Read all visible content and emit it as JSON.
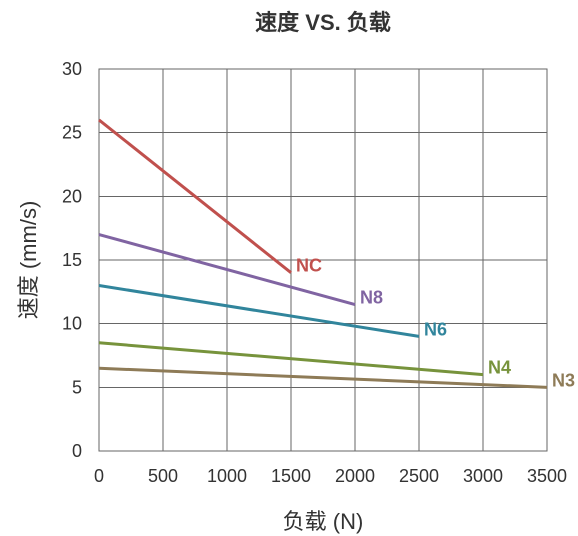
{
  "chart_data": {
    "type": "line",
    "title": "速度 VS. 负载",
    "xlabel": "负载 (N)",
    "ylabel": "速度 (mm/s)",
    "xlim": [
      0,
      3500
    ],
    "ylim": [
      0,
      30
    ],
    "xticks": [
      0,
      500,
      1000,
      1500,
      2000,
      2500,
      3000,
      3500
    ],
    "yticks": [
      0,
      5,
      10,
      15,
      20,
      25,
      30
    ],
    "grid": true,
    "legend": "none",
    "series": [
      {
        "name": "NC",
        "color": "#c0504d",
        "x": [
          0,
          1500
        ],
        "y": [
          26,
          14
        ]
      },
      {
        "name": "N8",
        "color": "#8064a2",
        "x": [
          0,
          2000
        ],
        "y": [
          17,
          11.5
        ]
      },
      {
        "name": "N6",
        "color": "#31859c",
        "x": [
          0,
          2500
        ],
        "y": [
          13,
          9
        ]
      },
      {
        "name": "N4",
        "color": "#77933c",
        "x": [
          0,
          3000
        ],
        "y": [
          8.5,
          6
        ]
      },
      {
        "name": "N3",
        "color": "#8e7b57",
        "x": [
          0,
          3500
        ],
        "y": [
          6.5,
          5
        ]
      }
    ]
  }
}
